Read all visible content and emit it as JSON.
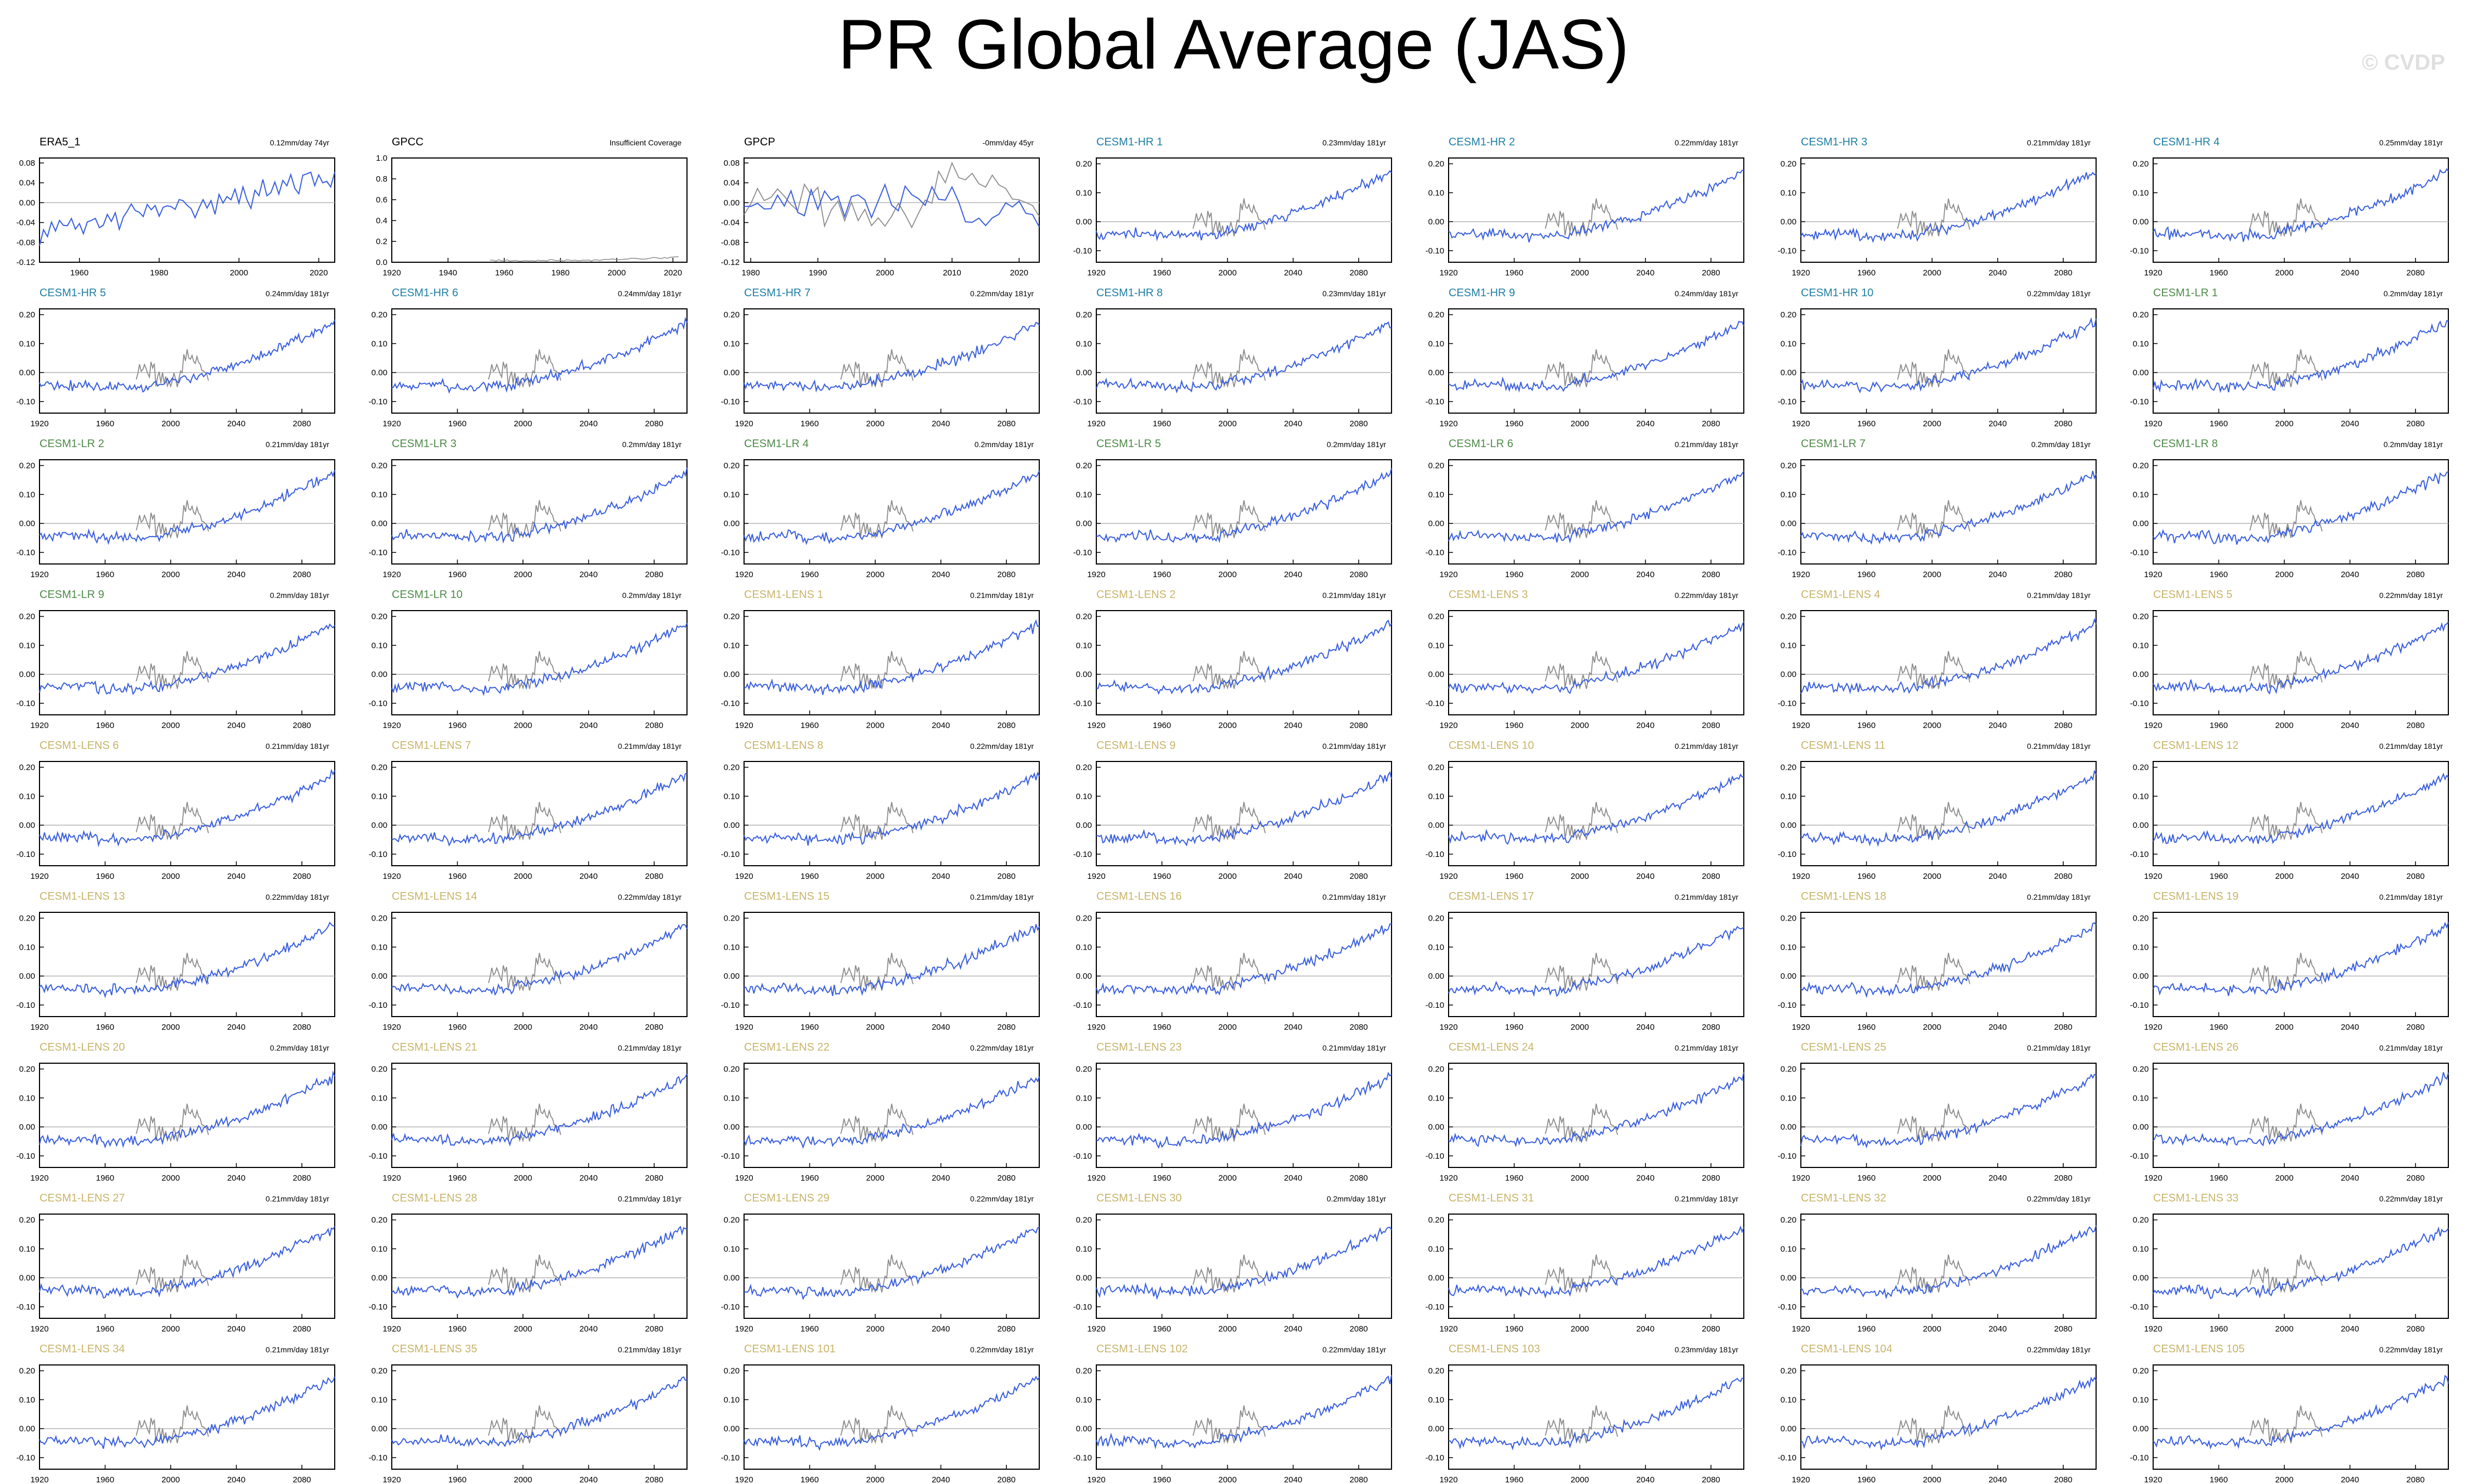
{
  "title": "PR Global Average (JAS)",
  "watermark": "© CVDP",
  "colors": {
    "model_line": "#3a5fe0",
    "obs_line": "#8c8c8c",
    "title_obs": "#000000",
    "title_hr": "#1f7fa6",
    "title_lr": "#4f8a4a",
    "title_lens": "#c8b46a"
  },
  "chart_data": {
    "type": "line",
    "layout": "small-multiples 9 rows x 7 columns",
    "shared": {
      "model_x_range": [
        1920,
        2100
      ],
      "model_x_ticks": [
        1920,
        1960,
        2000,
        2040,
        2080
      ],
      "model_y_range": [
        -0.14,
        0.22
      ],
      "model_y_ticks": [
        -0.1,
        0.0,
        0.1,
        0.2
      ],
      "model_y_tick_labels": [
        "-0.10",
        "0.00",
        "0.10",
        "0.20"
      ],
      "model_series_shape": "noisy rise from about -0.05 (1920-2000) to about 0.17 (2100)",
      "overlay_observation_series": "GPCP 1979-2023 (gray), values near -0.1 to 0.07"
    },
    "panels": [
      {
        "name": "ERA5_1",
        "group": "obs",
        "stat": "0.12mm/day 74yr",
        "x_range": [
          1950,
          2024
        ],
        "x_ticks": [
          1960,
          1980,
          2000,
          2020
        ],
        "y_range": [
          -0.12,
          0.09
        ],
        "y_ticks": [
          -0.12,
          -0.08,
          -0.04,
          0.0,
          0.04,
          0.08
        ],
        "y_tick_labels": [
          "-0.12",
          "-0.08",
          "-0.04",
          "0.00",
          "0.04",
          "0.08"
        ]
      },
      {
        "name": "GPCC",
        "group": "obs",
        "stat": "Insufficient Coverage",
        "x_range": [
          1920,
          2025
        ],
        "x_ticks": [
          1920,
          1940,
          1960,
          1980,
          2000,
          2020
        ],
        "y_range": [
          0,
          1.0
        ],
        "y_ticks": [
          0.0,
          0.2,
          0.4,
          0.6,
          0.8,
          1.0
        ],
        "y_tick_labels": [
          "0.0",
          "0.2",
          "0.4",
          "0.6",
          "0.8",
          "1.0"
        ]
      },
      {
        "name": "GPCP",
        "group": "obs",
        "stat": "-0mm/day 45yr",
        "x_range": [
          1979,
          2023
        ],
        "x_ticks": [
          1980,
          1990,
          2000,
          2010,
          2020
        ],
        "y_range": [
          -0.12,
          0.09
        ],
        "y_ticks": [
          -0.12,
          -0.08,
          -0.04,
          0.0,
          0.04,
          0.08
        ],
        "y_tick_labels": [
          "-0.12",
          "-0.08",
          "-0.04",
          "0.00",
          "0.04",
          "0.08"
        ]
      },
      {
        "name": "CESM1-HR 1",
        "group": "hr",
        "stat": "0.23mm/day 181yr"
      },
      {
        "name": "CESM1-HR 2",
        "group": "hr",
        "stat": "0.22mm/day 181yr"
      },
      {
        "name": "CESM1-HR 3",
        "group": "hr",
        "stat": "0.21mm/day 181yr"
      },
      {
        "name": "CESM1-HR 4",
        "group": "hr",
        "stat": "0.25mm/day 181yr"
      },
      {
        "name": "CESM1-HR 5",
        "group": "hr",
        "stat": "0.24mm/day 181yr"
      },
      {
        "name": "CESM1-HR 6",
        "group": "hr",
        "stat": "0.24mm/day 181yr"
      },
      {
        "name": "CESM1-HR 7",
        "group": "hr",
        "stat": "0.22mm/day 181yr"
      },
      {
        "name": "CESM1-HR 8",
        "group": "hr",
        "stat": "0.23mm/day 181yr"
      },
      {
        "name": "CESM1-HR 9",
        "group": "hr",
        "stat": "0.24mm/day 181yr"
      },
      {
        "name": "CESM1-HR 10",
        "group": "hr",
        "stat": "0.22mm/day 181yr"
      },
      {
        "name": "CESM1-LR 1",
        "group": "lr",
        "stat": "0.2mm/day 181yr"
      },
      {
        "name": "CESM1-LR 2",
        "group": "lr",
        "stat": "0.21mm/day 181yr"
      },
      {
        "name": "CESM1-LR 3",
        "group": "lr",
        "stat": "0.2mm/day 181yr"
      },
      {
        "name": "CESM1-LR 4",
        "group": "lr",
        "stat": "0.2mm/day 181yr"
      },
      {
        "name": "CESM1-LR 5",
        "group": "lr",
        "stat": "0.2mm/day 181yr"
      },
      {
        "name": "CESM1-LR 6",
        "group": "lr",
        "stat": "0.21mm/day 181yr"
      },
      {
        "name": "CESM1-LR 7",
        "group": "lr",
        "stat": "0.2mm/day 181yr"
      },
      {
        "name": "CESM1-LR 8",
        "group": "lr",
        "stat": "0.2mm/day 181yr"
      },
      {
        "name": "CESM1-LR 9",
        "group": "lr",
        "stat": "0.2mm/day 181yr"
      },
      {
        "name": "CESM1-LR 10",
        "group": "lr",
        "stat": "0.2mm/day 181yr"
      },
      {
        "name": "CESM1-LENS 1",
        "group": "lens",
        "stat": "0.21mm/day 181yr"
      },
      {
        "name": "CESM1-LENS 2",
        "group": "lens",
        "stat": "0.21mm/day 181yr"
      },
      {
        "name": "CESM1-LENS 3",
        "group": "lens",
        "stat": "0.22mm/day 181yr"
      },
      {
        "name": "CESM1-LENS 4",
        "group": "lens",
        "stat": "0.21mm/day 181yr"
      },
      {
        "name": "CESM1-LENS 5",
        "group": "lens",
        "stat": "0.22mm/day 181yr"
      },
      {
        "name": "CESM1-LENS 6",
        "group": "lens",
        "stat": "0.21mm/day 181yr"
      },
      {
        "name": "CESM1-LENS 7",
        "group": "lens",
        "stat": "0.21mm/day 181yr"
      },
      {
        "name": "CESM1-LENS 8",
        "group": "lens",
        "stat": "0.22mm/day 181yr"
      },
      {
        "name": "CESM1-LENS 9",
        "group": "lens",
        "stat": "0.21mm/day 181yr"
      },
      {
        "name": "CESM1-LENS 10",
        "group": "lens",
        "stat": "0.21mm/day 181yr"
      },
      {
        "name": "CESM1-LENS 11",
        "group": "lens",
        "stat": "0.21mm/day 181yr"
      },
      {
        "name": "CESM1-LENS 12",
        "group": "lens",
        "stat": "0.21mm/day 181yr"
      },
      {
        "name": "CESM1-LENS 13",
        "group": "lens",
        "stat": "0.22mm/day 181yr"
      },
      {
        "name": "CESM1-LENS 14",
        "group": "lens",
        "stat": "0.22mm/day 181yr"
      },
      {
        "name": "CESM1-LENS 15",
        "group": "lens",
        "stat": "0.21mm/day 181yr"
      },
      {
        "name": "CESM1-LENS 16",
        "group": "lens",
        "stat": "0.21mm/day 181yr"
      },
      {
        "name": "CESM1-LENS 17",
        "group": "lens",
        "stat": "0.21mm/day 181yr"
      },
      {
        "name": "CESM1-LENS 18",
        "group": "lens",
        "stat": "0.21mm/day 181yr"
      },
      {
        "name": "CESM1-LENS 19",
        "group": "lens",
        "stat": "0.21mm/day 181yr"
      },
      {
        "name": "CESM1-LENS 20",
        "group": "lens",
        "stat": "0.2mm/day 181yr"
      },
      {
        "name": "CESM1-LENS 21",
        "group": "lens",
        "stat": "0.21mm/day 181yr"
      },
      {
        "name": "CESM1-LENS 22",
        "group": "lens",
        "stat": "0.22mm/day 181yr"
      },
      {
        "name": "CESM1-LENS 23",
        "group": "lens",
        "stat": "0.21mm/day 181yr"
      },
      {
        "name": "CESM1-LENS 24",
        "group": "lens",
        "stat": "0.21mm/day 181yr"
      },
      {
        "name": "CESM1-LENS 25",
        "group": "lens",
        "stat": "0.21mm/day 181yr"
      },
      {
        "name": "CESM1-LENS 26",
        "group": "lens",
        "stat": "0.21mm/day 181yr"
      },
      {
        "name": "CESM1-LENS 27",
        "group": "lens",
        "stat": "0.21mm/day 181yr"
      },
      {
        "name": "CESM1-LENS 28",
        "group": "lens",
        "stat": "0.21mm/day 181yr"
      },
      {
        "name": "CESM1-LENS 29",
        "group": "lens",
        "stat": "0.22mm/day 181yr"
      },
      {
        "name": "CESM1-LENS 30",
        "group": "lens",
        "stat": "0.2mm/day 181yr"
      },
      {
        "name": "CESM1-LENS 31",
        "group": "lens",
        "stat": "0.21mm/day 181yr"
      },
      {
        "name": "CESM1-LENS 32",
        "group": "lens",
        "stat": "0.22mm/day 181yr"
      },
      {
        "name": "CESM1-LENS 33",
        "group": "lens",
        "stat": "0.22mm/day 181yr"
      },
      {
        "name": "CESM1-LENS 34",
        "group": "lens",
        "stat": "0.21mm/day 181yr"
      },
      {
        "name": "CESM1-LENS 35",
        "group": "lens",
        "stat": "0.21mm/day 181yr"
      },
      {
        "name": "CESM1-LENS 101",
        "group": "lens",
        "stat": "0.22mm/day 181yr"
      },
      {
        "name": "CESM1-LENS 102",
        "group": "lens",
        "stat": "0.22mm/day 181yr"
      },
      {
        "name": "CESM1-LENS 103",
        "group": "lens",
        "stat": "0.23mm/day 181yr"
      },
      {
        "name": "CESM1-LENS 104",
        "group": "lens",
        "stat": "0.22mm/day 181yr"
      },
      {
        "name": "CESM1-LENS 105",
        "group": "lens",
        "stat": "0.22mm/day 181yr"
      }
    ]
  }
}
